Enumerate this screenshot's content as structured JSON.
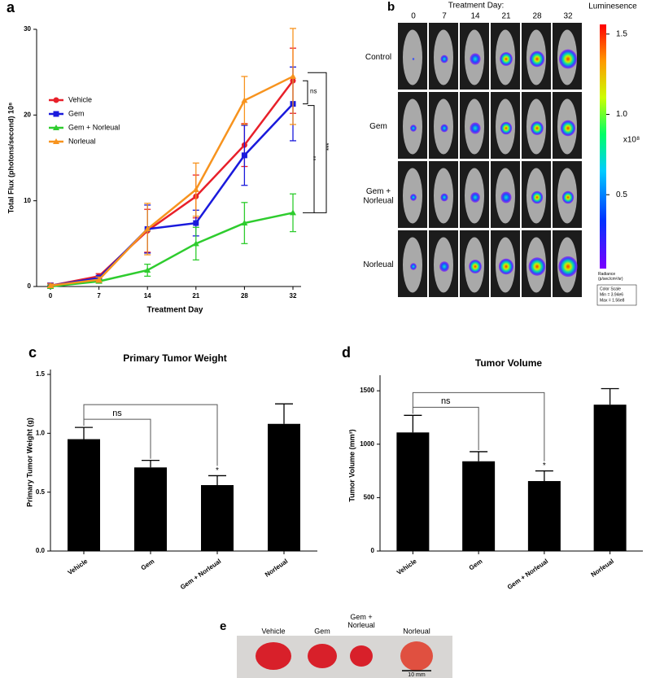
{
  "chart_data": [
    {
      "type": "line",
      "panel_label": "a",
      "x_label": "Treatment Day",
      "y_label": "Total Flux (photons/second) 10⁸",
      "categories": [
        0,
        7,
        14,
        21,
        28,
        32
      ],
      "ylim": [
        0,
        30
      ],
      "yticks": [
        0,
        10,
        20,
        30
      ],
      "series": [
        {
          "name": "Vehicle",
          "color": "#e8202a",
          "marker": "circle",
          "values": [
            0.1,
            1.2,
            6.5,
            10.5,
            16.5,
            24.0
          ],
          "errors": [
            0.3,
            0.3,
            2.5,
            2.5,
            2.5,
            3.8
          ]
        },
        {
          "name": "Gem",
          "color": "#1a1adc",
          "marker": "square",
          "values": [
            0.1,
            1.0,
            6.7,
            7.4,
            15.3,
            21.3
          ],
          "errors": [
            0.2,
            0.3,
            2.8,
            1.5,
            3.5,
            4.3
          ]
        },
        {
          "name": "Gem + Norleual",
          "color": "#2ecc2e",
          "marker": "triangle",
          "values": [
            0.0,
            0.6,
            1.9,
            5.0,
            7.4,
            8.6
          ],
          "errors": [
            0.1,
            0.2,
            0.7,
            1.9,
            2.4,
            2.2
          ]
        },
        {
          "name": "Norleual",
          "color": "#f7931e",
          "marker": "triangle",
          "values": [
            0.1,
            0.8,
            6.7,
            11.3,
            21.7,
            24.5
          ],
          "errors": [
            0.2,
            0.3,
            3.0,
            3.1,
            2.8,
            5.6
          ]
        }
      ],
      "annotations": [
        "ns",
        "**",
        "***"
      ]
    },
    {
      "type": "bar",
      "panel_label": "c",
      "title": "Primary Tumor Weight",
      "y_label": "Primary Tumor Weight (g)",
      "categories": [
        "Vehicle",
        "Gem",
        "Gem + Norleual",
        "Norleual"
      ],
      "values": [
        0.95,
        0.71,
        0.56,
        1.08
      ],
      "errors": [
        0.1,
        0.06,
        0.08,
        0.17
      ],
      "color": "#000000",
      "ylim": [
        0,
        1.5
      ],
      "yticks": [
        {
          "value": 0,
          "label": "0.0"
        },
        0.5,
        {
          "value": 1,
          "label": "1.0"
        },
        1.5
      ],
      "annotations": [
        "ns",
        "*"
      ]
    },
    {
      "type": "bar",
      "panel_label": "d",
      "title": "Tumor Volume",
      "y_label": "Tumor Volume (mm³)",
      "categories": [
        "Vehicle",
        "Gem",
        "Gem + Norleual",
        "Norleual"
      ],
      "values": [
        1110,
        840,
        655,
        1370
      ],
      "errors": [
        160,
        90,
        95,
        150
      ],
      "color": "#000000",
      "ylim": [
        0,
        1600
      ],
      "yticks": [
        0,
        500,
        1000,
        1500
      ],
      "annotations": [
        "ns",
        "*"
      ]
    }
  ],
  "imaging": {
    "panel_label": "b",
    "header": "Treatment Day:",
    "days": [
      "0",
      "7",
      "14",
      "21",
      "28",
      "32"
    ],
    "rows": [
      "Control",
      "Gem",
      "Gem +\nNorleual",
      "Norleual"
    ],
    "colorbar": {
      "title": "Luminesence",
      "unit": "x10⁸",
      "range": [
        0.04,
        1.56
      ],
      "ticks": [
        1.5,
        {
          "value": 1,
          "label": "1.0"
        },
        0.5
      ],
      "radiance": "Radiance\n(p/sec/cm²/sr)",
      "scale": [
        "Color Scale",
        "Min = 3.94e6",
        "Max = 1.56e8"
      ]
    }
  },
  "photo": {
    "panel_label": "e",
    "labels": [
      "Vehicle",
      "Gem",
      "Gem +\nNorleual",
      "Norleual"
    ],
    "scale_bar": "10 mm"
  }
}
